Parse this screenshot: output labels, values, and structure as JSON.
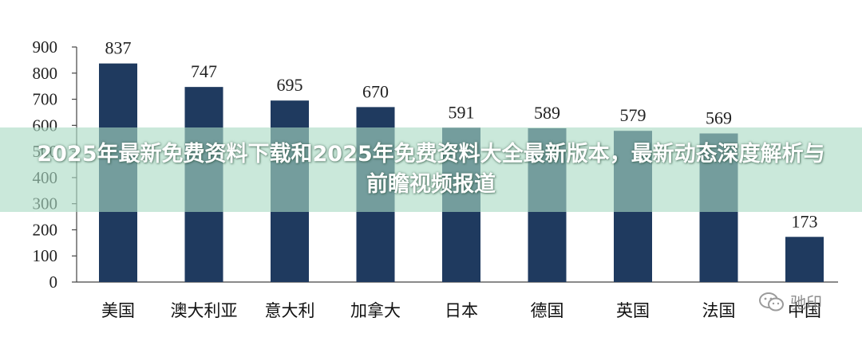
{
  "chart_data": {
    "type": "bar",
    "categories": [
      "美国",
      "澳大利亚",
      "意大利",
      "加拿大",
      "日本",
      "德国",
      "英国",
      "法国",
      "中国"
    ],
    "values": [
      837,
      747,
      695,
      670,
      591,
      589,
      579,
      569,
      173
    ],
    "y_ticks": [
      0,
      100,
      200,
      300,
      400,
      500,
      600,
      700,
      800,
      900
    ],
    "ylim": [
      0,
      900
    ],
    "bar_color": "#1f3a5f",
    "grid": false,
    "legend": "none"
  },
  "overlay": {
    "title": "2025年最新免费资料下载和2025年免费资料大全最新版本，最新动态深度解析与前瞻视频报道",
    "background": "#aadac4"
  },
  "watermark": {
    "icon": "wechat-icon",
    "text": "驰印"
  }
}
